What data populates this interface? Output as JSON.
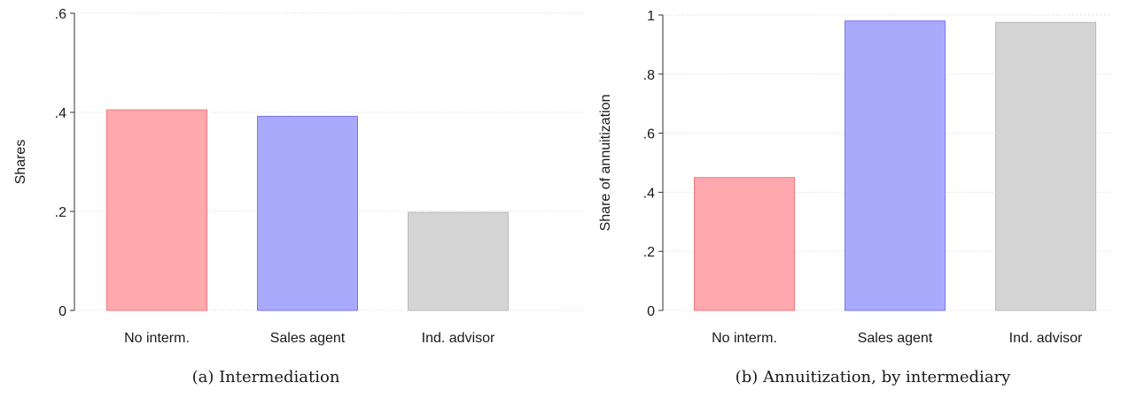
{
  "chart_data": [
    {
      "type": "bar",
      "caption": "(a) Intermediation",
      "ylabel": "Shares",
      "xlabel": "",
      "categories": [
        "No interm.",
        "Sales agent",
        "Ind. advisor"
      ],
      "values": [
        0.405,
        0.392,
        0.198
      ],
      "ylim": [
        0,
        0.6
      ],
      "yticks": [
        {
          "value": 0,
          "label": "0"
        },
        {
          "value": 0.2,
          "label": ".2"
        },
        {
          "value": 0.4,
          "label": ".4"
        },
        {
          "value": 0.6,
          "label": ".6"
        }
      ],
      "grid": true,
      "colors": {
        "fills": [
          "#ffa8ad",
          "#aaaafd",
          "#d4d4d4"
        ],
        "strokes": [
          "#f07a80",
          "#7777ee",
          "#bbbbbb"
        ]
      }
    },
    {
      "type": "bar",
      "caption": "(b) Annuitization, by intermediary",
      "ylabel": "Share of annuitization",
      "xlabel": "",
      "categories": [
        "No interm.",
        "Sales agent",
        "Ind. advisor"
      ],
      "values": [
        0.45,
        0.98,
        0.975
      ],
      "ylim": [
        0,
        1
      ],
      "yticks": [
        {
          "value": 0,
          "label": "0"
        },
        {
          "value": 0.2,
          "label": ".2"
        },
        {
          "value": 0.4,
          "label": ".4"
        },
        {
          "value": 0.6,
          "label": ".6"
        },
        {
          "value": 0.8,
          "label": ".8"
        },
        {
          "value": 1,
          "label": "1"
        }
      ],
      "grid": true,
      "colors": {
        "fills": [
          "#ffa8ad",
          "#aaaafd",
          "#d4d4d4"
        ],
        "strokes": [
          "#f07a80",
          "#7777ee",
          "#bbbbbb"
        ]
      }
    }
  ]
}
